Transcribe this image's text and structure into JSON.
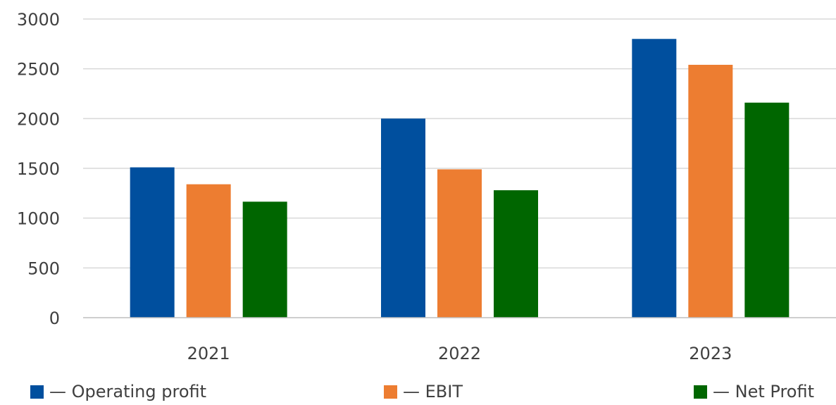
{
  "chart_data": {
    "type": "bar",
    "categories": [
      "2021",
      "2022",
      "2023"
    ],
    "series": [
      {
        "name": "— Operating profit",
        "color": "#004f9e",
        "values": [
          1510,
          2000,
          2800
        ]
      },
      {
        "name": "— EBIT",
        "color": "#ed7d31",
        "values": [
          1340,
          1490,
          2540
        ]
      },
      {
        "name": "— Net Profit",
        "color": "#006600",
        "values": [
          1165,
          1280,
          2160
        ]
      }
    ],
    "title": "",
    "xlabel": "",
    "ylabel": "",
    "ylim": [
      0,
      3000
    ],
    "yticks": [
      "0",
      "500",
      "1000",
      "1500",
      "2000",
      "2500",
      "3000"
    ],
    "grid": true,
    "legend_position": "bottom"
  }
}
